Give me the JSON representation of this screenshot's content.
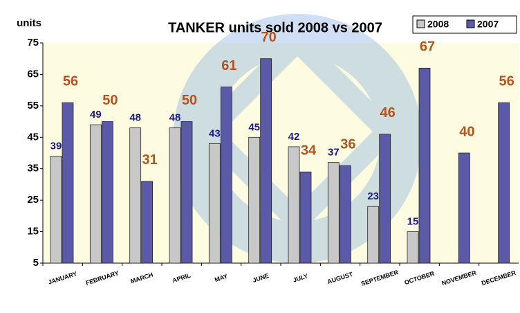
{
  "chart_data": {
    "type": "bar",
    "title": "TANKER units sold 2008 vs 2007",
    "y_label": "units",
    "categories": [
      "JANUARY",
      "FEBRUARY",
      "MARCH",
      "APRIL",
      "MAY",
      "JUNE",
      "JULY",
      "AUGUST",
      "SEPTEMBER",
      "OCTOBER",
      "NOVEMBER",
      "DECEMBER"
    ],
    "series": [
      {
        "name": "2008",
        "color": "#c8c8c8",
        "values": [
          39,
          49,
          48,
          48,
          43,
          45,
          42,
          37,
          23,
          15,
          null,
          null
        ]
      },
      {
        "name": "2007",
        "color": "#5a5aa8",
        "values": [
          56,
          50,
          31,
          50,
          61,
          70,
          34,
          36,
          46,
          67,
          40,
          56
        ]
      }
    ],
    "ylim": [
      5,
      75
    ],
    "yticks": [
      5,
      15,
      25,
      35,
      45,
      55,
      65,
      75
    ],
    "grid": false,
    "legend": "top-right"
  }
}
